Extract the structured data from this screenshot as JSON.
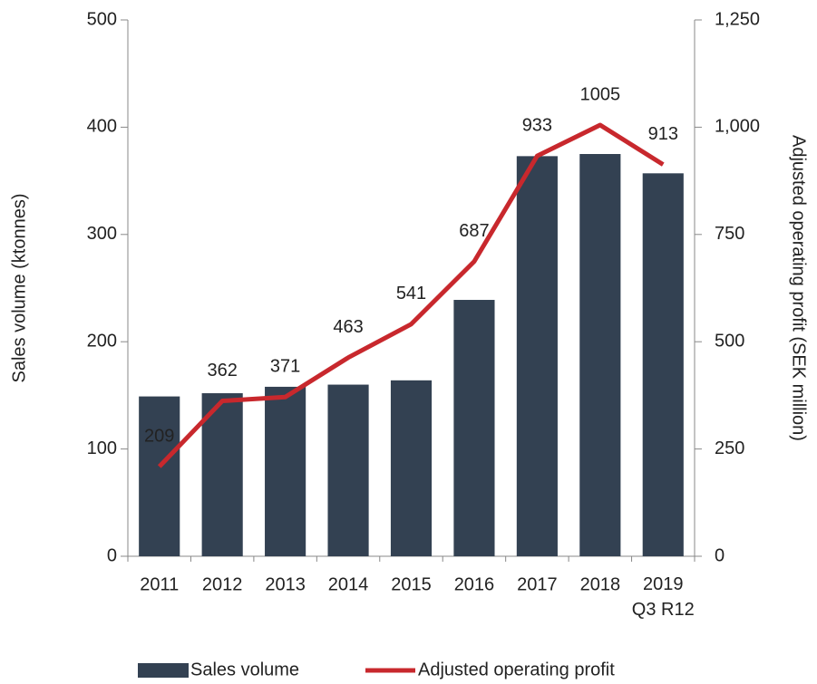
{
  "chart_data": {
    "type": "bar",
    "categories": [
      "2011",
      "2012",
      "2013",
      "2014",
      "2015",
      "2016",
      "2017",
      "2018",
      "2019\nQ3 R12"
    ],
    "series": [
      {
        "name": "Sales volume",
        "type": "bar",
        "color": "#334152",
        "values": [
          149,
          152,
          158,
          160,
          164,
          239,
          373,
          375,
          357
        ]
      },
      {
        "name": "Adjusted operating profit",
        "type": "line",
        "axis": "y2",
        "color": "#c8282d",
        "values": [
          209,
          362,
          371,
          463,
          541,
          687,
          933,
          1005,
          913
        ],
        "value_labels": [
          "209",
          "362",
          "371",
          "463",
          "541",
          "687",
          "933",
          "1005",
          "913"
        ]
      }
    ],
    "ylabel": "Sales volume (ktonnes)",
    "y2label": "Adjusted operating profit (SEK million)",
    "ylim": [
      0,
      500
    ],
    "yticks": [
      0,
      100,
      200,
      300,
      400,
      500
    ],
    "y2lim": [
      0,
      1250
    ],
    "y2ticks": [
      0,
      {
        "value": 250,
        "label": "250"
      },
      {
        "value": 500,
        "label": "500"
      },
      {
        "value": 750,
        "label": "750"
      },
      {
        "value": 1000,
        "label": "1,000"
      },
      {
        "value": 1250,
        "label": "1,250"
      }
    ],
    "legend": "bottom"
  }
}
